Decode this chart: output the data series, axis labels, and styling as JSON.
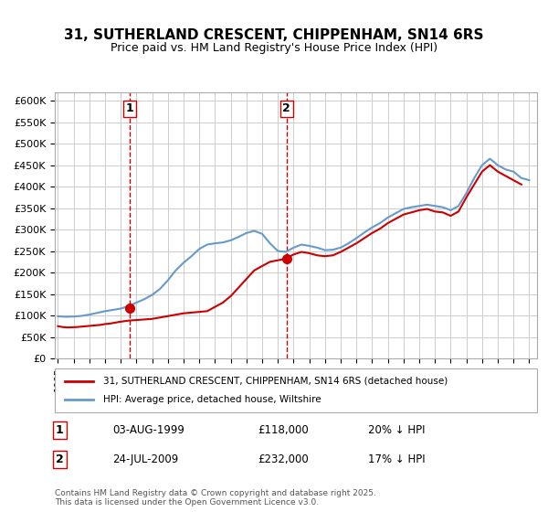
{
  "title": "31, SUTHERLAND CRESCENT, CHIPPENHAM, SN14 6RS",
  "subtitle": "Price paid vs. HM Land Registry's House Price Index (HPI)",
  "legend_entry1": "31, SUTHERLAND CRESCENT, CHIPPENHAM, SN14 6RS (detached house)",
  "legend_entry2": "HPI: Average price, detached house, Wiltshire",
  "marker1_label": "1",
  "marker2_label": "2",
  "marker1_date": "03-AUG-1999",
  "marker1_price": "£118,000",
  "marker1_hpi": "20% ↓ HPI",
  "marker2_date": "24-JUL-2009",
  "marker2_price": "£232,000",
  "marker2_hpi": "17% ↓ HPI",
  "footer": "Contains HM Land Registry data © Crown copyright and database right 2025.\nThis data is licensed under the Open Government Licence v3.0.",
  "red_color": "#cc0000",
  "blue_color": "#6699cc",
  "marker_vline_color": "#cc0000",
  "background_color": "#ffffff",
  "grid_color": "#cccccc",
  "ylim": [
    0,
    620000
  ],
  "xlabel_color": "#333333",
  "hpi_data": {
    "years": [
      1995.0,
      1995.5,
      1996.0,
      1996.5,
      1997.0,
      1997.5,
      1998.0,
      1998.5,
      1999.0,
      1999.5,
      2000.0,
      2000.5,
      2001.0,
      2001.5,
      2002.0,
      2002.5,
      2003.0,
      2003.5,
      2004.0,
      2004.5,
      2005.0,
      2005.5,
      2006.0,
      2006.5,
      2007.0,
      2007.5,
      2008.0,
      2008.5,
      2009.0,
      2009.5,
      2010.0,
      2010.5,
      2011.0,
      2011.5,
      2012.0,
      2012.5,
      2013.0,
      2013.5,
      2014.0,
      2014.5,
      2015.0,
      2015.5,
      2016.0,
      2016.5,
      2017.0,
      2017.5,
      2018.0,
      2018.5,
      2019.0,
      2019.5,
      2020.0,
      2020.5,
      2021.0,
      2021.5,
      2022.0,
      2022.5,
      2023.0,
      2023.5,
      2024.0,
      2024.5,
      2025.0
    ],
    "values": [
      98000,
      97000,
      97500,
      99000,
      102000,
      106000,
      110000,
      113000,
      116000,
      122000,
      130000,
      138000,
      148000,
      162000,
      182000,
      205000,
      223000,
      238000,
      255000,
      265000,
      268000,
      270000,
      275000,
      283000,
      292000,
      297000,
      290000,
      268000,
      250000,
      248000,
      258000,
      265000,
      262000,
      258000,
      252000,
      253000,
      258000,
      268000,
      280000,
      293000,
      305000,
      315000,
      328000,
      338000,
      348000,
      352000,
      355000,
      358000,
      355000,
      352000,
      345000,
      355000,
      385000,
      420000,
      450000,
      465000,
      450000,
      440000,
      435000,
      420000,
      415000
    ]
  },
  "price_data": {
    "years": [
      1995.0,
      1995.3,
      1995.6,
      1995.9,
      1996.2,
      1996.5,
      1996.8,
      1997.1,
      1997.4,
      1997.7,
      1998.0,
      1998.3,
      1998.6,
      1998.9,
      1999.5,
      2001.0,
      2003.0,
      2004.5,
      2005.0,
      2005.5,
      2006.0,
      2006.5,
      2007.0,
      2007.5,
      2008.0,
      2008.5,
      2009.5,
      2010.0,
      2010.5,
      2011.0,
      2011.5,
      2012.0,
      2012.5,
      2013.0,
      2013.5,
      2014.0,
      2014.5,
      2015.0,
      2015.5,
      2016.0,
      2016.5,
      2017.0,
      2017.5,
      2018.0,
      2018.5,
      2019.0,
      2019.5,
      2020.0,
      2020.5,
      2021.0,
      2021.5,
      2022.0,
      2022.5,
      2023.0,
      2023.5,
      2024.0,
      2024.5
    ],
    "values": [
      75000,
      73000,
      72000,
      72500,
      73000,
      74000,
      75000,
      76000,
      77000,
      78000,
      80000,
      81000,
      83000,
      85000,
      88000,
      92000,
      105000,
      110000,
      120000,
      130000,
      145000,
      165000,
      185000,
      205000,
      215000,
      225000,
      232000,
      242000,
      248000,
      245000,
      240000,
      238000,
      240000,
      248000,
      258000,
      268000,
      280000,
      292000,
      302000,
      315000,
      325000,
      335000,
      340000,
      345000,
      348000,
      342000,
      340000,
      332000,
      342000,
      375000,
      405000,
      435000,
      450000,
      435000,
      425000,
      415000,
      405000
    ]
  },
  "vline1_x": 1999.58,
  "vline2_x": 2009.55,
  "marker1_x": 1999.58,
  "marker1_y": 118000,
  "marker2_x": 2009.55,
  "marker2_y": 232000,
  "xlim": [
    1994.8,
    2025.5
  ],
  "xticks": [
    1995,
    1996,
    1997,
    1998,
    1999,
    2000,
    2001,
    2002,
    2003,
    2004,
    2005,
    2006,
    2007,
    2008,
    2009,
    2010,
    2011,
    2012,
    2013,
    2014,
    2015,
    2016,
    2017,
    2018,
    2019,
    2020,
    2021,
    2022,
    2023,
    2024,
    2025
  ]
}
